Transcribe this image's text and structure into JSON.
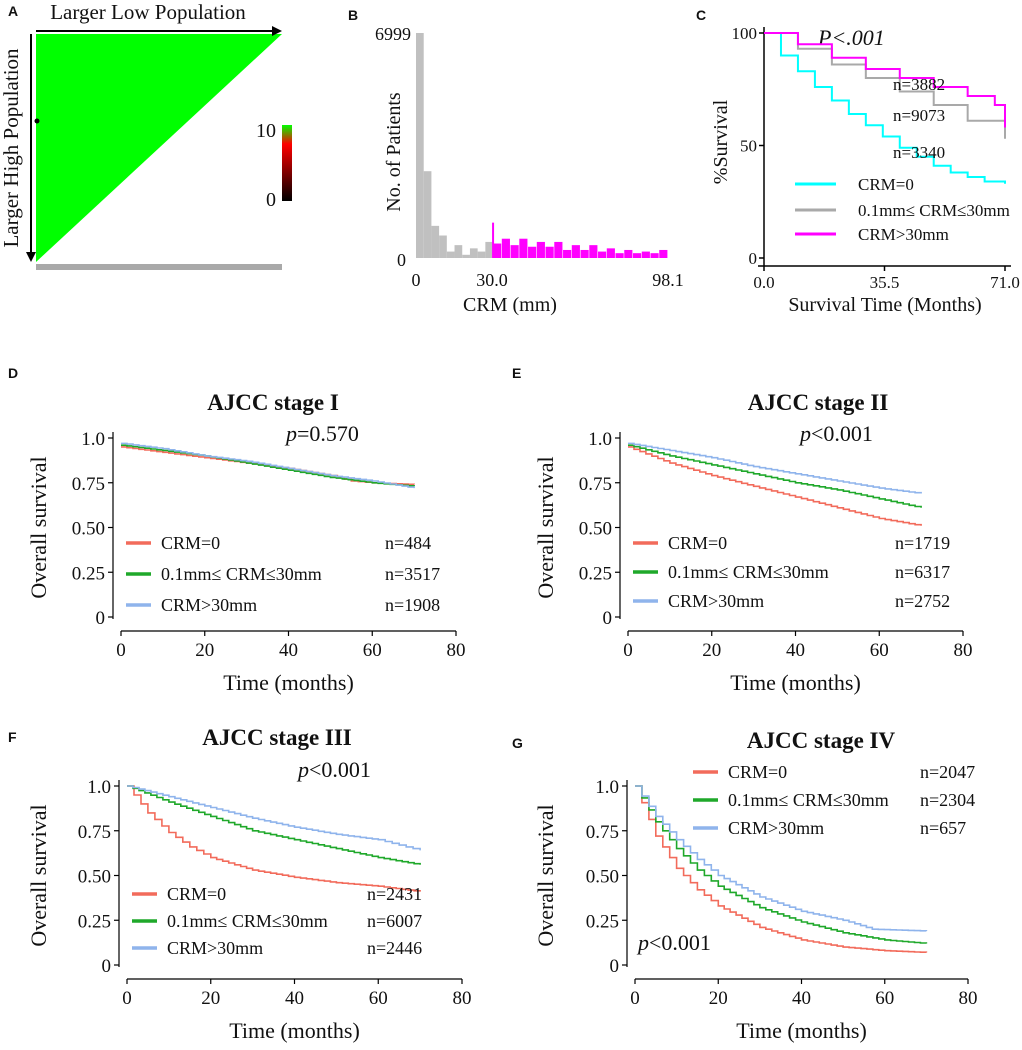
{
  "colors": {
    "triangle": "#00ff00",
    "hist_low": "#c0c0c0",
    "hist_high": "#ff00ff",
    "c_crm0": "#00ffff",
    "c_mid": "#a9a9a9",
    "c_high": "#ff00ff",
    "km_crm0": "#f26b5b",
    "km_mid": "#1fa82a",
    "km_high": "#8fb4ec",
    "bar_gray": "#a9a9a9"
  },
  "chart_data": [
    {
      "panel": "A",
      "type": "heatmap",
      "top_label": "Larger Low Population",
      "left_label": "Larger High Population",
      "color_scale": {
        "max_label": "10",
        "min_label": "0",
        "stops": [
          "#00ff00",
          "#ff0000",
          "#000000"
        ]
      }
    },
    {
      "panel": "B",
      "type": "bar",
      "xlabel": "CRM (mm)",
      "ylabel": "No. of Patients",
      "xlim": [
        0,
        98.1
      ],
      "ylim": [
        0,
        6999
      ],
      "xticks": [
        "0",
        "30.0",
        "98.1"
      ],
      "yticks": [
        "0",
        "6999"
      ],
      "cutoff": 30.0,
      "bins_low": [
        6999,
        2700,
        1000,
        700,
        200,
        400,
        100,
        300,
        200,
        500
      ],
      "bins_high": [
        450,
        600,
        400,
        600,
        350,
        500,
        350,
        500,
        250,
        400,
        250,
        400,
        200,
        300,
        150,
        250,
        150,
        200,
        150,
        250
      ]
    },
    {
      "panel": "C",
      "type": "line",
      "xlabel": "Survival Time (Months)",
      "ylabel": "%Survival",
      "xticks": [
        "0.0",
        "35.5",
        "71.0"
      ],
      "yticks": [
        "0",
        "50",
        "100"
      ],
      "xlim": [
        0,
        71
      ],
      "ylim": [
        0,
        100
      ],
      "pvalue": "P<.001",
      "series": [
        {
          "name": "CRM=0",
          "n_label": "n=3340",
          "x": [
            0,
            5,
            10,
            15,
            20,
            25,
            30,
            35,
            40,
            45,
            50,
            55,
            60,
            65,
            71
          ],
          "y": [
            100,
            90,
            83,
            76,
            70,
            64,
            59,
            54,
            49,
            45,
            41,
            38,
            36,
            34,
            33
          ]
        },
        {
          "name": "0.1mm≤ CRM≤30mm",
          "n_label": "n=9073",
          "x": [
            0,
            10,
            20,
            30,
            40,
            50,
            60,
            71
          ],
          "y": [
            100,
            93,
            86,
            80,
            74,
            68,
            61,
            53
          ]
        },
        {
          "name": "CRM>30mm",
          "n_label": "n=3882",
          "x": [
            0,
            10,
            20,
            30,
            40,
            50,
            60,
            68,
            71
          ],
          "y": [
            100,
            95,
            89,
            84,
            80,
            76,
            72,
            68,
            58
          ]
        }
      ]
    },
    {
      "panel": "D",
      "type": "line",
      "title": "AJCC stage I",
      "xlabel": "Time (months)",
      "ylabel": "Overall survival",
      "xticks": [
        "0",
        "20",
        "40",
        "60",
        "80"
      ],
      "yticks": [
        "0",
        "0.25",
        "0.50",
        "0.75",
        "1.0"
      ],
      "xlim": [
        0,
        80
      ],
      "ylim": [
        0,
        1
      ],
      "pvalue_prefix": "p",
      "pvalue_rest": "=0.570",
      "series": [
        {
          "name": "CRM=0",
          "n_label": "n=484",
          "x": [
            0,
            10,
            20,
            30,
            40,
            50,
            55,
            60,
            70
          ],
          "y": [
            0.95,
            0.92,
            0.89,
            0.86,
            0.83,
            0.79,
            0.76,
            0.75,
            0.74
          ]
        },
        {
          "name": "0.1mm≤ CRM≤30mm",
          "n_label": "n=3517",
          "x": [
            0,
            10,
            20,
            30,
            40,
            50,
            60,
            70
          ],
          "y": [
            0.96,
            0.93,
            0.9,
            0.86,
            0.82,
            0.78,
            0.75,
            0.73
          ]
        },
        {
          "name": "CRM>30mm",
          "n_label": "n=1908",
          "x": [
            0,
            10,
            20,
            30,
            40,
            50,
            60,
            70
          ],
          "y": [
            0.97,
            0.94,
            0.9,
            0.87,
            0.83,
            0.79,
            0.76,
            0.72
          ]
        }
      ]
    },
    {
      "panel": "E",
      "type": "line",
      "title": "AJCC stage II",
      "xlabel": "Time (months)",
      "ylabel": "Overall survival",
      "xticks": [
        "0",
        "20",
        "40",
        "60",
        "80"
      ],
      "yticks": [
        "0",
        "0.25",
        "0.50",
        "0.75",
        "1.0"
      ],
      "xlim": [
        0,
        80
      ],
      "ylim": [
        0,
        1
      ],
      "pvalue_prefix": "p",
      "pvalue_rest": "<0.001",
      "series": [
        {
          "name": "CRM=0",
          "n_label": "n=1719",
          "x": [
            0,
            10,
            20,
            30,
            40,
            50,
            60,
            70
          ],
          "y": [
            0.95,
            0.86,
            0.79,
            0.73,
            0.67,
            0.61,
            0.55,
            0.51
          ]
        },
        {
          "name": "0.1mm≤ CRM≤30mm",
          "n_label": "n=6317",
          "x": [
            0,
            10,
            20,
            30,
            40,
            50,
            60,
            70
          ],
          "y": [
            0.96,
            0.9,
            0.85,
            0.8,
            0.75,
            0.71,
            0.66,
            0.61
          ]
        },
        {
          "name": "CRM>30mm",
          "n_label": "n=2752",
          "x": [
            0,
            10,
            20,
            30,
            40,
            50,
            60,
            70
          ],
          "y": [
            0.97,
            0.93,
            0.89,
            0.84,
            0.8,
            0.76,
            0.72,
            0.69
          ]
        }
      ]
    },
    {
      "panel": "F",
      "type": "line",
      "title": "AJCC stage III",
      "xlabel": "Time (months)",
      "ylabel": "Overall survival",
      "xticks": [
        "0",
        "20",
        "40",
        "60",
        "80"
      ],
      "yticks": [
        "0",
        "0.25",
        "0.50",
        "0.75",
        "1.0"
      ],
      "xlim": [
        0,
        80
      ],
      "ylim": [
        0,
        1
      ],
      "pvalue_prefix": "p",
      "pvalue_rest": "<0.001",
      "series": [
        {
          "name": "CRM=0",
          "n_label": "n=2431",
          "x": [
            0,
            5,
            10,
            15,
            20,
            30,
            40,
            50,
            60,
            70
          ],
          "y": [
            1.0,
            0.85,
            0.74,
            0.66,
            0.6,
            0.53,
            0.49,
            0.46,
            0.44,
            0.41
          ]
        },
        {
          "name": "0.1mm≤ CRM≤30mm",
          "n_label": "n=6007",
          "x": [
            0,
            10,
            20,
            30,
            40,
            50,
            60,
            70
          ],
          "y": [
            1.0,
            0.91,
            0.83,
            0.75,
            0.7,
            0.65,
            0.6,
            0.56
          ]
        },
        {
          "name": "CRM>30mm",
          "n_label": "n=2446",
          "x": [
            0,
            10,
            20,
            30,
            40,
            50,
            60,
            65,
            70
          ],
          "y": [
            1.0,
            0.94,
            0.88,
            0.82,
            0.77,
            0.73,
            0.7,
            0.67,
            0.64
          ]
        }
      ]
    },
    {
      "panel": "G",
      "type": "line",
      "title": "AJCC stage IV",
      "xlabel": "Time (months)",
      "ylabel": "Overall survival",
      "xticks": [
        "0",
        "20",
        "40",
        "60",
        "80"
      ],
      "yticks": [
        "0",
        "0.25",
        "0.50",
        "0.75",
        "1.0"
      ],
      "xlim": [
        0,
        80
      ],
      "ylim": [
        0,
        1
      ],
      "pvalue_prefix": "p",
      "pvalue_rest": "<0.001",
      "series": [
        {
          "name": "CRM=0",
          "n_label": "n=2047",
          "x": [
            0,
            5,
            10,
            15,
            20,
            30,
            40,
            50,
            60,
            70
          ],
          "y": [
            1.0,
            0.72,
            0.54,
            0.42,
            0.33,
            0.21,
            0.14,
            0.1,
            0.08,
            0.07
          ]
        },
        {
          "name": "0.1mm≤ CRM≤30mm",
          "n_label": "n=2304",
          "x": [
            0,
            5,
            10,
            15,
            20,
            30,
            40,
            50,
            60,
            70
          ],
          "y": [
            1.0,
            0.8,
            0.65,
            0.53,
            0.44,
            0.32,
            0.24,
            0.18,
            0.14,
            0.12
          ]
        },
        {
          "name": "CRM>30mm",
          "n_label": "n=657",
          "x": [
            0,
            5,
            10,
            15,
            20,
            30,
            40,
            50,
            57,
            70
          ],
          "y": [
            1.0,
            0.83,
            0.7,
            0.59,
            0.5,
            0.38,
            0.3,
            0.25,
            0.2,
            0.19
          ]
        }
      ]
    }
  ],
  "panel_labels": {
    "A": "A",
    "B": "B",
    "C": "C",
    "D": "D",
    "E": "E",
    "F": "F",
    "G": "G"
  }
}
